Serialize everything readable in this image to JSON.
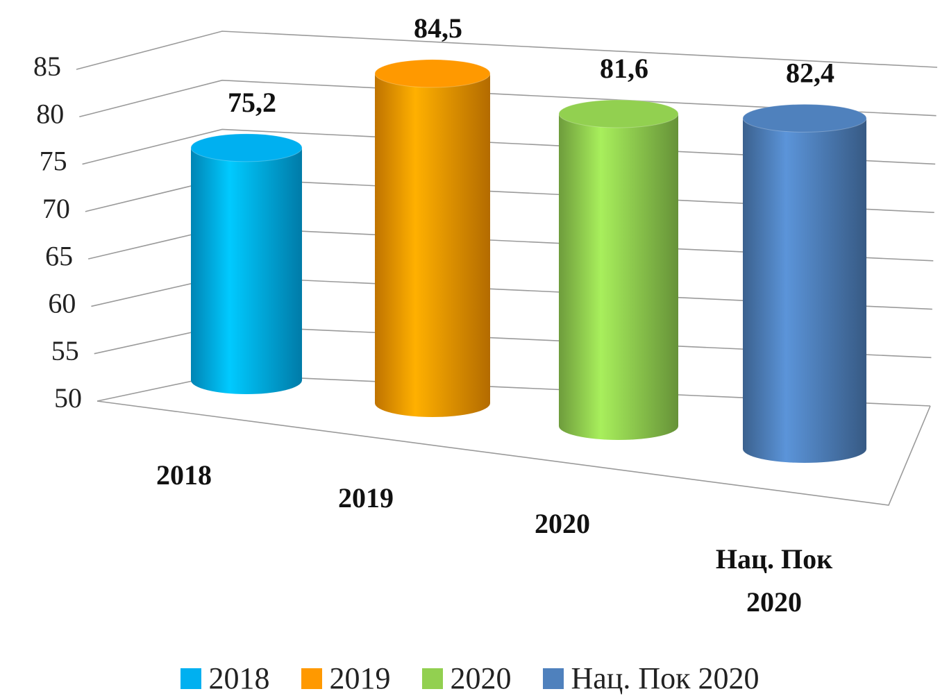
{
  "chart_data": {
    "type": "bar3d-cylinder",
    "categories": [
      "2018",
      "2019",
      "2020",
      "Нац. Пок 2020"
    ],
    "values": [
      75.2,
      84.5,
      81.6,
      82.4
    ],
    "value_labels": [
      "75,2",
      "84,5",
      "81,6",
      "82,4"
    ],
    "colors": [
      "#00b0f0",
      "#ff9900",
      "#92d050",
      "#4f81bd"
    ],
    "ylim": [
      50,
      85
    ],
    "yticks": [
      50,
      55,
      60,
      65,
      70,
      75,
      80,
      85
    ],
    "grid": true
  }
}
